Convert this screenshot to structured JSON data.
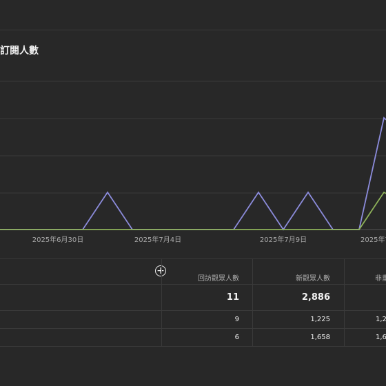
{
  "chart": {
    "title": "訂閱人數",
    "chart_data": {
      "type": "line",
      "xlabel": "",
      "ylabel": "",
      "grid": true,
      "x_tick_labels": [
        "2025年6月30日",
        "2025年7月4日",
        "2025年7月9日",
        "2025年7"
      ],
      "series": [
        {
          "color": "#8c8cdc",
          "points": [
            {
              "x": 0,
              "y": 0
            },
            {
              "x": 120,
              "y": 0
            },
            {
              "x": 156,
              "y": 1
            },
            {
              "x": 192,
              "y": 0
            },
            {
              "x": 339,
              "y": 0
            },
            {
              "x": 375,
              "y": 1
            },
            {
              "x": 411,
              "y": 0
            },
            {
              "x": 447,
              "y": 1
            },
            {
              "x": 483,
              "y": 0
            },
            {
              "x": 521,
              "y": 0
            },
            {
              "x": 557,
              "y": 3
            },
            {
              "x": 560,
              "y": 2.95
            }
          ]
        },
        {
          "color": "#8fb35a",
          "points": [
            {
              "x": 0,
              "y": 0
            },
            {
              "x": 521,
              "y": 0
            },
            {
              "x": 557,
              "y": 1
            },
            {
              "x": 560,
              "y": 0.97
            }
          ]
        }
      ]
    }
  },
  "table": {
    "columns": [
      "回訪觀眾人數",
      "新觀眾人數",
      "非重"
    ],
    "rows": [
      [
        "11",
        "2,886",
        ""
      ],
      [
        "9",
        "1,225",
        "1,2"
      ],
      [
        "6",
        "1,658",
        "1,6"
      ]
    ]
  },
  "icons": {
    "add_column": "plus-circle-icon",
    "add_glyph": "+"
  }
}
